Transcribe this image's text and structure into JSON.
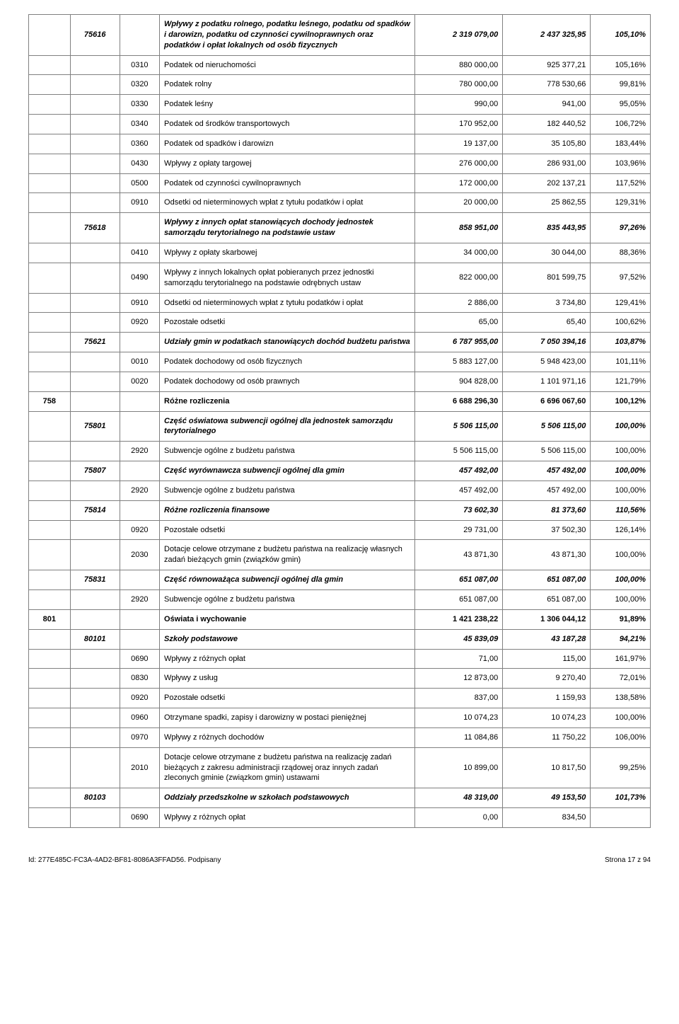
{
  "footer": {
    "left": "Id: 277E485C-FC3A-4AD2-BF81-8086A3FFAD56. Podpisany",
    "right": "Strona 17 z 94"
  },
  "rows": [
    {
      "c1": "",
      "c2": "75616",
      "c3": "",
      "desc": "Wpływy z podatku rolnego, podatku leśnego, podatku od spadków i darowizn, podatku od czynności cywilnoprawnych oraz podatków i opłat lokalnych od osób fizycznych",
      "v1": "2 319 079,00",
      "v2": "2 437 325,95",
      "v3": "105,10%",
      "style": "bolditalic"
    },
    {
      "c1": "",
      "c2": "",
      "c3": "0310",
      "desc": "Podatek od nieruchomości",
      "v1": "880 000,00",
      "v2": "925 377,21",
      "v3": "105,16%",
      "style": ""
    },
    {
      "c1": "",
      "c2": "",
      "c3": "0320",
      "desc": "Podatek rolny",
      "v1": "780 000,00",
      "v2": "778 530,66",
      "v3": "99,81%",
      "style": ""
    },
    {
      "c1": "",
      "c2": "",
      "c3": "0330",
      "desc": "Podatek leśny",
      "v1": "990,00",
      "v2": "941,00",
      "v3": "95,05%",
      "style": ""
    },
    {
      "c1": "",
      "c2": "",
      "c3": "0340",
      "desc": "Podatek od środków transportowych",
      "v1": "170 952,00",
      "v2": "182 440,52",
      "v3": "106,72%",
      "style": ""
    },
    {
      "c1": "",
      "c2": "",
      "c3": "0360",
      "desc": "Podatek od spadków i darowizn",
      "v1": "19 137,00",
      "v2": "35 105,80",
      "v3": "183,44%",
      "style": ""
    },
    {
      "c1": "",
      "c2": "",
      "c3": "0430",
      "desc": "Wpływy z opłaty targowej",
      "v1": "276 000,00",
      "v2": "286 931,00",
      "v3": "103,96%",
      "style": ""
    },
    {
      "c1": "",
      "c2": "",
      "c3": "0500",
      "desc": "Podatek od czynności cywilnoprawnych",
      "v1": "172 000,00",
      "v2": "202 137,21",
      "v3": "117,52%",
      "style": ""
    },
    {
      "c1": "",
      "c2": "",
      "c3": "0910",
      "desc": "Odsetki od nieterminowych wpłat z tytułu podatków i opłat",
      "v1": "20 000,00",
      "v2": "25 862,55",
      "v3": "129,31%",
      "style": ""
    },
    {
      "c1": "",
      "c2": "75618",
      "c3": "",
      "desc": "Wpływy z innych opłat stanowiących dochody jednostek samorządu terytorialnego na podstawie ustaw",
      "v1": "858 951,00",
      "v2": "835 443,95",
      "v3": "97,26%",
      "style": "bolditalic"
    },
    {
      "c1": "",
      "c2": "",
      "c3": "0410",
      "desc": "Wpływy z opłaty skarbowej",
      "v1": "34 000,00",
      "v2": "30 044,00",
      "v3": "88,36%",
      "style": ""
    },
    {
      "c1": "",
      "c2": "",
      "c3": "0490",
      "desc": "Wpływy z innych lokalnych opłat pobieranych przez jednostki samorządu terytorialnego na podstawie odrębnych ustaw",
      "v1": "822 000,00",
      "v2": "801 599,75",
      "v3": "97,52%",
      "style": ""
    },
    {
      "c1": "",
      "c2": "",
      "c3": "0910",
      "desc": "Odsetki od nieterminowych wpłat z tytułu podatków i opłat",
      "v1": "2 886,00",
      "v2": "3 734,80",
      "v3": "129,41%",
      "style": ""
    },
    {
      "c1": "",
      "c2": "",
      "c3": "0920",
      "desc": "Pozostałe odsetki",
      "v1": "65,00",
      "v2": "65,40",
      "v3": "100,62%",
      "style": ""
    },
    {
      "c1": "",
      "c2": "75621",
      "c3": "",
      "desc": "Udziały gmin w podatkach stanowiących dochód budżetu państwa",
      "v1": "6 787 955,00",
      "v2": "7 050 394,16",
      "v3": "103,87%",
      "style": "bolditalic"
    },
    {
      "c1": "",
      "c2": "",
      "c3": "0010",
      "desc": "Podatek dochodowy od osób fizycznych",
      "v1": "5 883 127,00",
      "v2": "5 948 423,00",
      "v3": "101,11%",
      "style": ""
    },
    {
      "c1": "",
      "c2": "",
      "c3": "0020",
      "desc": "Podatek dochodowy od osób prawnych",
      "v1": "904 828,00",
      "v2": "1 101 971,16",
      "v3": "121,79%",
      "style": ""
    },
    {
      "c1": "758",
      "c2": "",
      "c3": "",
      "desc": "Różne rozliczenia",
      "v1": "6 688 296,30",
      "v2": "6 696 067,60",
      "v3": "100,12%",
      "style": "bold"
    },
    {
      "c1": "",
      "c2": "75801",
      "c3": "",
      "desc": "Część oświatowa subwencji ogólnej dla jednostek samorządu terytorialnego",
      "v1": "5 506 115,00",
      "v2": "5 506 115,00",
      "v3": "100,00%",
      "style": "bolditalic"
    },
    {
      "c1": "",
      "c2": "",
      "c3": "2920",
      "desc": "Subwencje ogólne z budżetu państwa",
      "v1": "5 506 115,00",
      "v2": "5 506 115,00",
      "v3": "100,00%",
      "style": ""
    },
    {
      "c1": "",
      "c2": "75807",
      "c3": "",
      "desc": "Część wyrównawcza subwencji ogólnej dla gmin",
      "v1": "457 492,00",
      "v2": "457 492,00",
      "v3": "100,00%",
      "style": "bolditalic"
    },
    {
      "c1": "",
      "c2": "",
      "c3": "2920",
      "desc": "Subwencje ogólne z budżetu państwa",
      "v1": "457 492,00",
      "v2": "457 492,00",
      "v3": "100,00%",
      "style": ""
    },
    {
      "c1": "",
      "c2": "75814",
      "c3": "",
      "desc": "Różne rozliczenia finansowe",
      "v1": "73 602,30",
      "v2": "81 373,60",
      "v3": "110,56%",
      "style": "bolditalic"
    },
    {
      "c1": "",
      "c2": "",
      "c3": "0920",
      "desc": "Pozostałe odsetki",
      "v1": "29 731,00",
      "v2": "37 502,30",
      "v3": "126,14%",
      "style": ""
    },
    {
      "c1": "",
      "c2": "",
      "c3": "2030",
      "desc": "Dotacje celowe otrzymane z budżetu państwa na realizację własnych zadań bieżących gmin (związków gmin)",
      "v1": "43 871,30",
      "v2": "43 871,30",
      "v3": "100,00%",
      "style": ""
    },
    {
      "c1": "",
      "c2": "75831",
      "c3": "",
      "desc": "Część równoważąca subwencji ogólnej dla gmin",
      "v1": "651 087,00",
      "v2": "651 087,00",
      "v3": "100,00%",
      "style": "bolditalic"
    },
    {
      "c1": "",
      "c2": "",
      "c3": "2920",
      "desc": "Subwencje ogólne z budżetu państwa",
      "v1": "651 087,00",
      "v2": "651 087,00",
      "v3": "100,00%",
      "style": ""
    },
    {
      "c1": "801",
      "c2": "",
      "c3": "",
      "desc": "Oświata i wychowanie",
      "v1": "1 421 238,22",
      "v2": "1 306 044,12",
      "v3": "91,89%",
      "style": "bold"
    },
    {
      "c1": "",
      "c2": "80101",
      "c3": "",
      "desc": "Szkoły podstawowe",
      "v1": "45 839,09",
      "v2": "43 187,28",
      "v3": "94,21%",
      "style": "bolditalic"
    },
    {
      "c1": "",
      "c2": "",
      "c3": "0690",
      "desc": "Wpływy z różnych opłat",
      "v1": "71,00",
      "v2": "115,00",
      "v3": "161,97%",
      "style": ""
    },
    {
      "c1": "",
      "c2": "",
      "c3": "0830",
      "desc": "Wpływy z usług",
      "v1": "12 873,00",
      "v2": "9 270,40",
      "v3": "72,01%",
      "style": ""
    },
    {
      "c1": "",
      "c2": "",
      "c3": "0920",
      "desc": "Pozostałe odsetki",
      "v1": "837,00",
      "v2": "1 159,93",
      "v3": "138,58%",
      "style": ""
    },
    {
      "c1": "",
      "c2": "",
      "c3": "0960",
      "desc": "Otrzymane spadki, zapisy i darowizny w postaci pieniężnej",
      "v1": "10 074,23",
      "v2": "10 074,23",
      "v3": "100,00%",
      "style": ""
    },
    {
      "c1": "",
      "c2": "",
      "c3": "0970",
      "desc": "Wpływy z różnych dochodów",
      "v1": "11 084,86",
      "v2": "11 750,22",
      "v3": "106,00%",
      "style": ""
    },
    {
      "c1": "",
      "c2": "",
      "c3": "2010",
      "desc": "Dotacje celowe otrzymane z budżetu państwa na realizację zadań bieżących z zakresu administracji rządowej oraz innych zadań zleconych gminie (związkom gmin) ustawami",
      "v1": "10 899,00",
      "v2": "10 817,50",
      "v3": "99,25%",
      "style": ""
    },
    {
      "c1": "",
      "c2": "80103",
      "c3": "",
      "desc": "Oddziały przedszkolne w szkołach podstawowych",
      "v1": "48 319,00",
      "v2": "49 153,50",
      "v3": "101,73%",
      "style": "bolditalic"
    },
    {
      "c1": "",
      "c2": "",
      "c3": "0690",
      "desc": "Wpływy z różnych opłat",
      "v1": "0,00",
      "v2": "834,50",
      "v3": "",
      "style": ""
    }
  ]
}
